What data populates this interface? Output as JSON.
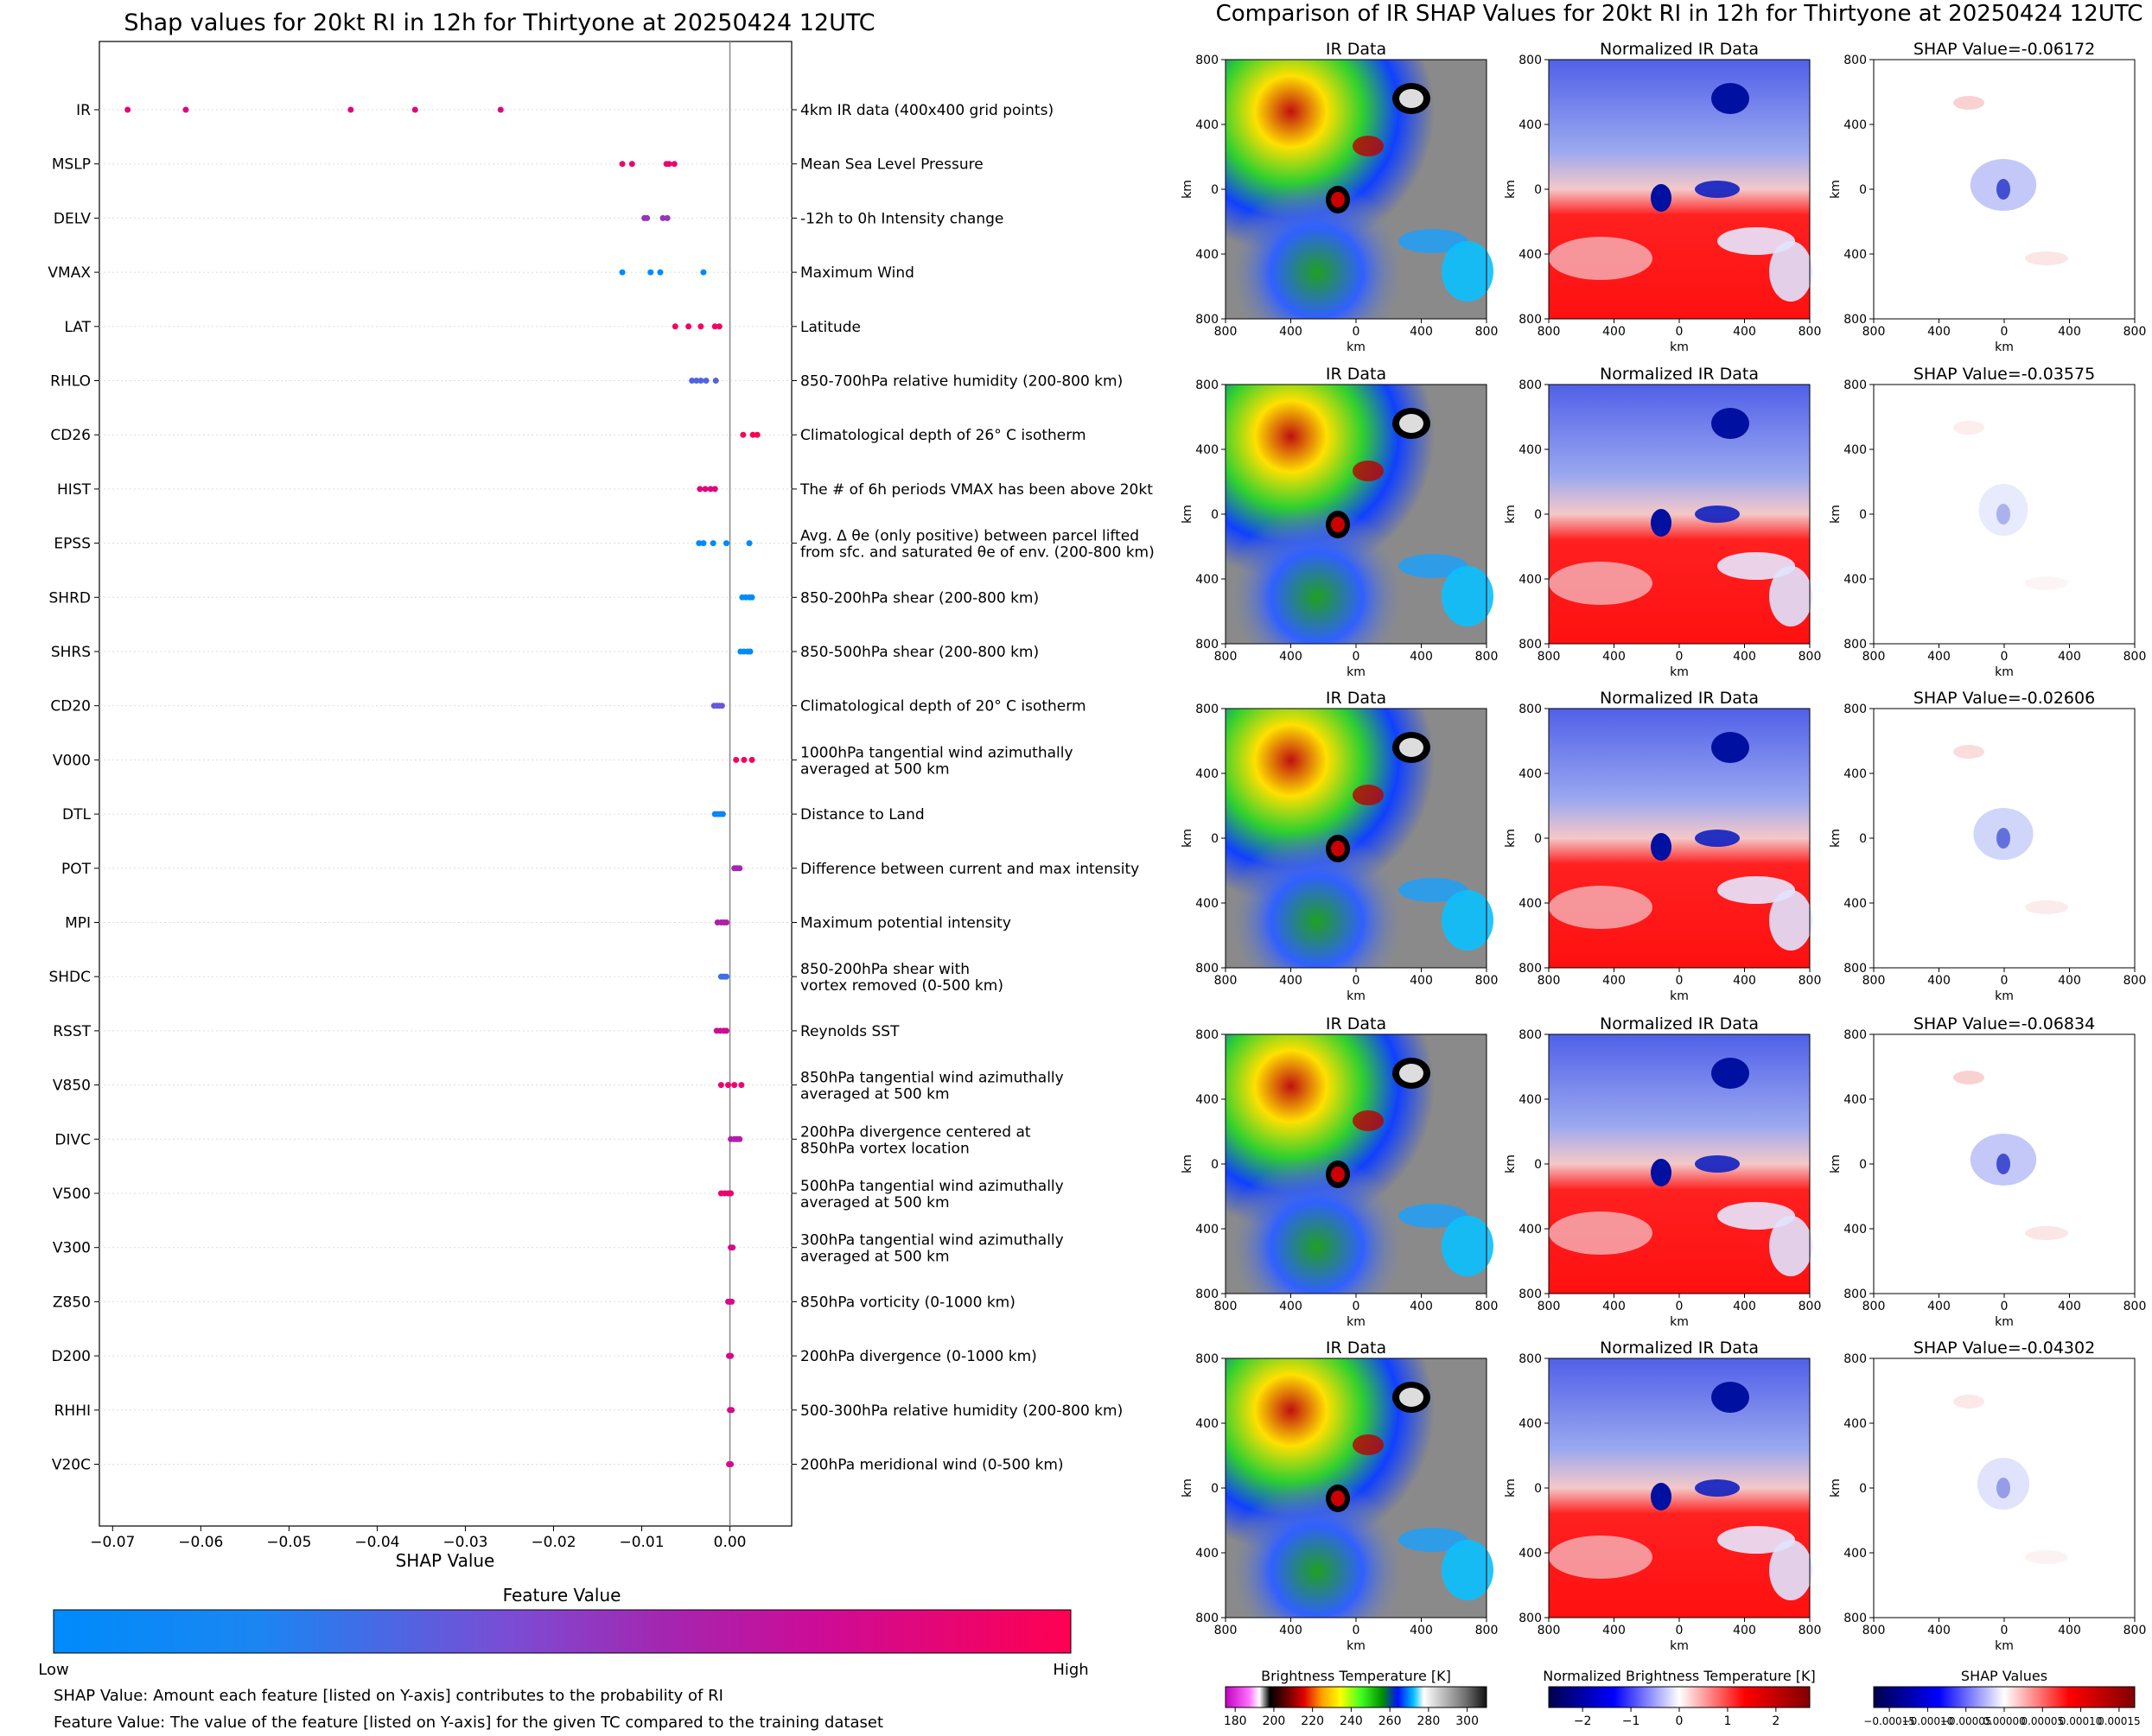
{
  "left": {
    "title": "Shap values for 20kt RI in 12h for Thirtyone at 20250424 12UTC",
    "xlabel": "SHAP Value",
    "colorbar_title": "Feature Value",
    "colorbar_low": "Low",
    "colorbar_high": "High",
    "footnote1": "SHAP Value: Amount each feature [listed on Y-axis] contributes to the probability of RI",
    "footnote2": "Feature Value: The value of the feature [listed on Y-axis] for the given TC compared to the training dataset"
  },
  "right": {
    "title": "Comparison of IR SHAP Values for 20kt RI in 12h for Thirtyone at 20250424 12UTC",
    "col_titles": [
      "IR Data",
      "Normalized IR Data"
    ],
    "shap_titles": [
      "SHAP Value=-0.06172",
      "SHAP Value=-0.03575",
      "SHAP Value=-0.02606",
      "SHAP Value=-0.06834",
      "SHAP Value=-0.04302"
    ],
    "axis_label": "km",
    "ticks": [
      "800",
      "400",
      "0",
      "400",
      "800"
    ],
    "colorbars": [
      {
        "title": "Brightness Temperature [K]",
        "ticks": [
          "180",
          "200",
          "220",
          "240",
          "260",
          "280",
          "300"
        ]
      },
      {
        "title": "Normalized Brightness Temperature [K]",
        "ticks": [
          "−2",
          "−1",
          "0",
          "1",
          "2"
        ]
      },
      {
        "title": "SHAP Values",
        "ticks": [
          "−0.00015",
          "−0.00010",
          "−0.00005",
          "0.00000",
          "0.00005",
          "0.00010",
          "0.00015"
        ]
      }
    ]
  },
  "chart_data": [
    {
      "type": "scatter",
      "title": "Shap values for 20kt RI in 12h for Thirtyone at 20250424 12UTC",
      "xlabel": "SHAP Value",
      "xlim": [
        -0.0715,
        0.007
      ],
      "xticks": [
        "−0.07",
        "−0.06",
        "−0.05",
        "−0.04",
        "−0.03",
        "−0.02",
        "−0.01",
        "0.00"
      ],
      "colors": {
        "low": "#008bfb",
        "high": "#ff0052"
      },
      "features": [
        {
          "name": "IR",
          "desc": "4km IR data (400x400 grid points)",
          "values": [
            -0.0683,
            -0.0617,
            -0.043,
            -0.0357,
            -0.026
          ],
          "fv": [
            0.85,
            0.85,
            0.85,
            0.85,
            0.85
          ]
        },
        {
          "name": "MSLP",
          "desc": "Mean Sea Level Pressure",
          "values": [
            -0.0122,
            -0.0111,
            -0.0072,
            -0.0069,
            -0.0063
          ],
          "fv": [
            0.9,
            0.9,
            0.9,
            0.9,
            0.9
          ]
        },
        {
          "name": "DELV",
          "desc": "-12h to 0h Intensity change",
          "values": [
            -0.0097,
            -0.0094,
            -0.0076,
            -0.0071
          ],
          "fv": [
            0.55,
            0.55,
            0.55,
            0.55
          ]
        },
        {
          "name": "VMAX",
          "desc": "Maximum Wind",
          "values": [
            -0.0122,
            -0.009,
            -0.0079,
            -0.003
          ],
          "fv": [
            0.0,
            0.0,
            0.0,
            0.0
          ]
        },
        {
          "name": "LAT",
          "desc": "Latitude",
          "values": [
            -0.0062,
            -0.0047,
            -0.0033,
            -0.0017,
            -0.0012
          ],
          "fv": [
            0.95,
            0.95,
            0.95,
            0.95,
            0.95
          ]
        },
        {
          "name": "RHLO",
          "desc": "850-700hPa relative humidity (200-800 km)",
          "values": [
            -0.0043,
            -0.0038,
            -0.0033,
            -0.0027,
            -0.0016
          ],
          "fv": [
            0.35,
            0.35,
            0.35,
            0.35,
            0.35
          ]
        },
        {
          "name": "CD26",
          "desc": "Climatological depth of 26° C isotherm",
          "values": [
            0.0015,
            0.0026,
            0.0031
          ],
          "fv": [
            1.0,
            1.0,
            1.0
          ]
        },
        {
          "name": "HIST",
          "desc": "The # of 6h periods VMAX has been above 20kt",
          "values": [
            -0.0034,
            -0.0028,
            -0.0022,
            -0.0017
          ],
          "fv": [
            0.85,
            0.85,
            0.85,
            0.85
          ]
        },
        {
          "name": "EPSS",
          "desc": "Avg. Δ θe (only positive) between parcel lifted|from sfc. and saturated θe of env. (200-800 km)",
          "values": [
            -0.0035,
            -0.003,
            -0.0019,
            -0.0004,
            0.0022
          ],
          "fv": [
            0.0,
            0.0,
            0.0,
            0.0,
            0.0
          ]
        },
        {
          "name": "SHRD",
          "desc": "850-200hPa shear (200-800 km)",
          "values": [
            0.0014,
            0.0018,
            0.0022,
            0.0025
          ],
          "fv": [
            0.0,
            0.0,
            0.0,
            0.0
          ]
        },
        {
          "name": "SHRS",
          "desc": "850-500hPa shear (200-800 km)",
          "values": [
            0.0012,
            0.0016,
            0.002,
            0.0023
          ],
          "fv": [
            0.0,
            0.0,
            0.0,
            0.0
          ]
        },
        {
          "name": "CD20",
          "desc": "Climatological depth of 20° C isotherm",
          "values": [
            -0.0018,
            -0.0015,
            -0.0012,
            -0.0009
          ],
          "fv": [
            0.4,
            0.4,
            0.4,
            0.4
          ]
        },
        {
          "name": "V000",
          "desc": "1000hPa tangential wind azimuthally|averaged at 500 km",
          "values": [
            0.0007,
            0.0016,
            0.0025
          ],
          "fv": [
            0.95,
            0.95,
            0.95
          ]
        },
        {
          "name": "DTL",
          "desc": "Distance to Land",
          "values": [
            -0.0017,
            -0.0014,
            -0.0011,
            -0.0008
          ],
          "fv": [
            0.05,
            0.05,
            0.05,
            0.05
          ]
        },
        {
          "name": "POT",
          "desc": "Difference between current and max intensity",
          "values": [
            0.0005,
            0.0008,
            0.0011
          ],
          "fv": [
            0.6,
            0.6,
            0.6
          ]
        },
        {
          "name": "MPI",
          "desc": "Maximum potential intensity",
          "values": [
            -0.0014,
            -0.001,
            -0.0007,
            -0.0004
          ],
          "fv": [
            0.65,
            0.65,
            0.65,
            0.65
          ]
        },
        {
          "name": "SHDC",
          "desc": "850-200hPa shear with|vortex removed (0-500 km)",
          "values": [
            -0.001,
            -0.0008,
            -0.0006,
            -0.0004
          ],
          "fv": [
            0.3,
            0.3,
            0.3,
            0.3
          ]
        },
        {
          "name": "RSST",
          "desc": "Reynolds SST",
          "values": [
            -0.0015,
            -0.0011,
            -0.0007,
            -0.0004
          ],
          "fv": [
            0.75,
            0.75,
            0.75,
            0.75
          ]
        },
        {
          "name": "V850",
          "desc": "850hPa tangential wind azimuthally|averaged at 500 km",
          "values": [
            -0.001,
            -0.0002,
            0.0005,
            0.0013
          ],
          "fv": [
            0.9,
            0.9,
            0.9,
            0.9
          ]
        },
        {
          "name": "DIVC",
          "desc": "200hPa divergence centered at|850hPa vortex location",
          "values": [
            0.0001,
            0.0005,
            0.0008,
            0.0011
          ],
          "fv": [
            0.65,
            0.65,
            0.65,
            0.65
          ]
        },
        {
          "name": "V500",
          "desc": "500hPa tangential wind azimuthally|averaged at 500 km",
          "values": [
            -0.001,
            -0.0006,
            -0.0002,
            0.0001
          ],
          "fv": [
            0.9,
            0.9,
            0.9,
            0.9
          ]
        },
        {
          "name": "V300",
          "desc": "300hPa tangential wind azimuthally|averaged at 500 km",
          "values": [
            0.0001,
            0.0003
          ],
          "fv": [
            0.8,
            0.8
          ]
        },
        {
          "name": "Z850",
          "desc": "850hPa vorticity (0-1000 km)",
          "values": [
            -0.0002,
            0.0,
            0.0002
          ],
          "fv": [
            0.8,
            0.8,
            0.8
          ]
        },
        {
          "name": "D200",
          "desc": "200hPa divergence (0-1000 km)",
          "values": [
            -0.0001,
            0.0001
          ],
          "fv": [
            0.8,
            0.8
          ]
        },
        {
          "name": "RHHI",
          "desc": "500-300hPa relative humidity (200-800 km)",
          "values": [
            0.0,
            0.0002
          ],
          "fv": [
            0.8,
            0.8
          ]
        },
        {
          "name": "V20C",
          "desc": "200hPa meridional wind (0-500 km)",
          "values": [
            -0.0001,
            0.0001
          ],
          "fv": [
            0.8,
            0.8
          ]
        }
      ]
    },
    {
      "type": "heatmap",
      "title": "Comparison of IR SHAP Values for 20kt RI in 12h for Thirtyone at 20250424 12UTC",
      "panels_per_row": [
        "IR Data",
        "Normalized IR Data",
        "SHAP Value"
      ],
      "shap_values": [
        -0.06172,
        -0.03575,
        -0.02606,
        -0.06834,
        -0.04302
      ],
      "xlim": [
        -800,
        800
      ],
      "ylim": [
        -800,
        800
      ],
      "units": "km"
    }
  ]
}
